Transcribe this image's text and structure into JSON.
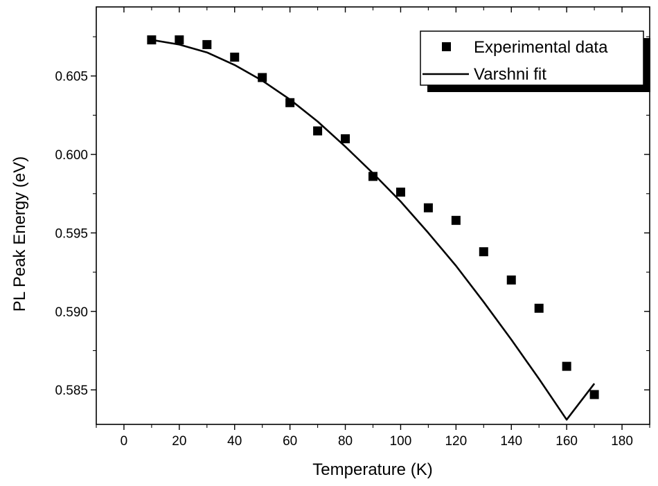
{
  "chart_data": {
    "type": "scatter",
    "xlabel": "Temperature (K)",
    "ylabel": "PL Peak Energy (eV)",
    "xlim": [
      -10,
      190
    ],
    "ylim": [
      0.5828,
      0.6094
    ],
    "xticks": [
      0,
      20,
      40,
      60,
      80,
      100,
      120,
      140,
      160,
      180
    ],
    "xtick_labels": [
      "0",
      "20",
      "40",
      "60",
      "80",
      "100",
      "120",
      "140",
      "160",
      "180"
    ],
    "yticks": [
      0.585,
      0.59,
      0.595,
      0.6,
      0.605
    ],
    "ytick_labels": [
      "0.585",
      "0.590",
      "0.595",
      "0.600",
      "0.605"
    ],
    "minor_ticks": true,
    "grid": false,
    "legend_position": "top-right",
    "series": [
      {
        "name": "Experimental data",
        "kind": "scatter",
        "marker": "square",
        "color": "#000000",
        "x": [
          10,
          20,
          30,
          40,
          50,
          60,
          70,
          80,
          90,
          100,
          110,
          120,
          130,
          140,
          150,
          160,
          170
        ],
        "y": [
          0.6073,
          0.6073,
          0.607,
          0.6062,
          0.6049,
          0.6033,
          0.6015,
          0.601,
          0.5986,
          0.5976,
          0.5966,
          0.5958,
          0.5938,
          0.592,
          0.5902,
          0.5865,
          0.5847
        ]
      },
      {
        "name": "Varshni fit",
        "kind": "line",
        "color": "#000000",
        "x": [
          10,
          20,
          30,
          40,
          50,
          60,
          70,
          80,
          90,
          100,
          110,
          120,
          130,
          140,
          150,
          160,
          170
        ],
        "y": [
          0.6073,
          0.607,
          0.6065,
          0.6057,
          0.6047,
          0.6035,
          0.6021,
          0.6005,
          0.5988,
          0.597,
          0.595,
          0.5929,
          0.5906,
          0.5882,
          0.5857,
          0.5831,
          0.5854
        ]
      }
    ]
  }
}
